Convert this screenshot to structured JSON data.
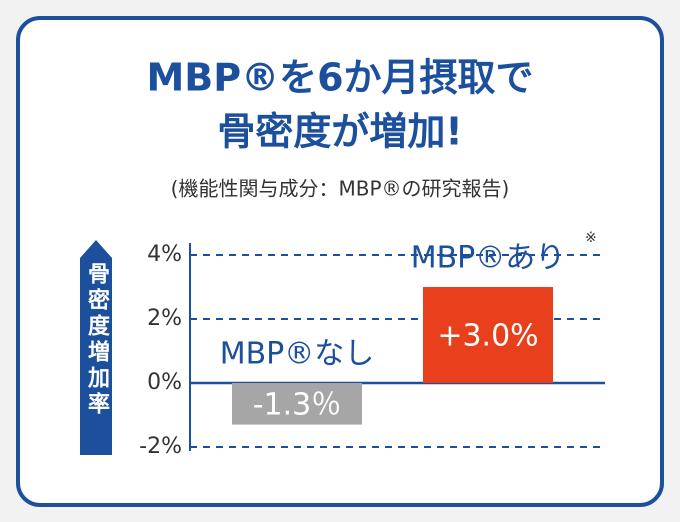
{
  "chart_data": {
    "type": "bar",
    "title": [
      "MBP®を6か月摂取で",
      "骨密度が増加!"
    ],
    "subtitle": "(機能性関与成分：MBP®の研究報告)",
    "y_label": "骨密度増加率",
    "annotation": "※",
    "categories": [
      "MBP®なし",
      "MBP®あり"
    ],
    "values": [
      -1.3,
      3.0
    ],
    "value_labels": [
      "-1.3％",
      "+3.0%"
    ],
    "colors": [
      "#a6a6a6",
      "#e8401c"
    ],
    "ylim": [
      -2,
      4
    ],
    "yticks": [
      {
        "value": 4,
        "label": "4%"
      },
      {
        "value": 2,
        "label": "2%"
      },
      {
        "value": 0,
        "label": "0%"
      },
      {
        "value": -2,
        "label": "-2%"
      }
    ],
    "grid": true
  }
}
